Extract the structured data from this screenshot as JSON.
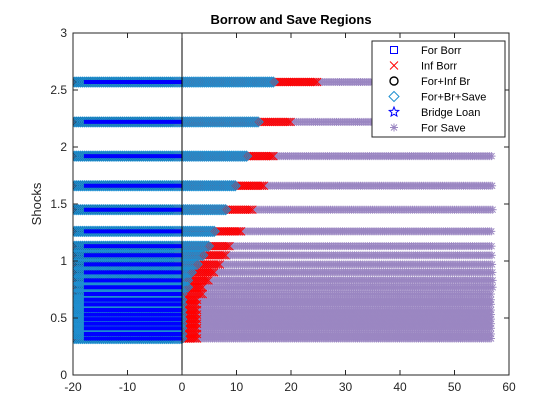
{
  "chart_data": {
    "type": "scatter",
    "title": "Borrow and Save Regions",
    "xlabel": "",
    "ylabel": "Shocks",
    "xlim": [
      -20,
      60
    ],
    "ylim": [
      0,
      3
    ],
    "xticks": [
      -20,
      -10,
      0,
      10,
      20,
      30,
      40,
      50,
      60
    ],
    "yticks": [
      0,
      0.5,
      1,
      1.5,
      2,
      2.5,
      3
    ],
    "xtick_labels": [
      "-20",
      "-10",
      "0",
      "10",
      "20",
      "30",
      "40",
      "50",
      "60"
    ],
    "ytick_labels": [
      "0",
      "0.5",
      "1",
      "1.5",
      "2",
      "2.5",
      "3"
    ],
    "vertical_line_x": 0,
    "grid": false,
    "legend_position": "top-right",
    "shock_levels": [
      0.32,
      0.36,
      0.41,
      0.45,
      0.49,
      0.53,
      0.57,
      0.62,
      0.66,
      0.71,
      0.77,
      0.83,
      0.9,
      0.97,
      1.05,
      1.13,
      1.26,
      1.45,
      1.66,
      1.92,
      2.22,
      2.57
    ],
    "series": [
      {
        "name": "For Borr",
        "marker": "square",
        "color": "#0000ff",
        "points": []
      },
      {
        "name": "Inf Borr",
        "marker": "x",
        "color": "#ff0000",
        "ranges": [
          {
            "y": 2.57,
            "x0": -20,
            "x1": 25
          },
          {
            "y": 2.22,
            "x0": -20,
            "x1": 20
          },
          {
            "y": 1.92,
            "x0": -20,
            "x1": 17
          },
          {
            "y": 1.66,
            "x0": -20,
            "x1": 15
          },
          {
            "y": 1.45,
            "x0": -20,
            "x1": 13
          },
          {
            "y": 1.26,
            "x0": -20,
            "x1": 11
          },
          {
            "y": 1.13,
            "x0": -20,
            "x1": 9
          },
          {
            "y": 1.05,
            "x0": -20,
            "x1": 8
          },
          {
            "y": 0.97,
            "x0": -20,
            "x1": 7
          },
          {
            "y": 0.9,
            "x0": -20,
            "x1": 6
          },
          {
            "y": 0.83,
            "x0": -20,
            "x1": 5
          },
          {
            "y": 0.77,
            "x0": -20,
            "x1": 4
          },
          {
            "y": 0.71,
            "x0": -20,
            "x1": 4
          },
          {
            "y": 0.66,
            "x0": -20,
            "x1": 3
          },
          {
            "y": 0.62,
            "x0": -20,
            "x1": 3
          },
          {
            "y": 0.57,
            "x0": -20,
            "x1": 3
          },
          {
            "y": 0.53,
            "x0": -20,
            "x1": 3
          },
          {
            "y": 0.49,
            "x0": -20,
            "x1": 3
          },
          {
            "y": 0.45,
            "x0": -20,
            "x1": 3
          },
          {
            "y": 0.41,
            "x0": -20,
            "x1": 3
          },
          {
            "y": 0.36,
            "x0": -20,
            "x1": 3
          },
          {
            "y": 0.32,
            "x0": -20,
            "x1": 3
          }
        ]
      },
      {
        "name": "For+Inf Br",
        "marker": "circle",
        "color": "#000000",
        "ranges": [
          {
            "y": 2.57,
            "x0": -20,
            "x1": -2
          },
          {
            "y": 2.22,
            "x0": -20,
            "x1": -2
          },
          {
            "y": 1.92,
            "x0": -20,
            "x1": -2
          },
          {
            "y": 1.66,
            "x0": -20,
            "x1": -2
          },
          {
            "y": 1.45,
            "x0": -20,
            "x1": -2
          },
          {
            "y": 1.26,
            "x0": -20,
            "x1": -2
          },
          {
            "y": 1.13,
            "x0": -20,
            "x1": -2
          },
          {
            "y": 1.05,
            "x0": -20,
            "x1": -2
          },
          {
            "y": 0.97,
            "x0": -20,
            "x1": -2
          },
          {
            "y": 0.9,
            "x0": -20,
            "x1": -2
          },
          {
            "y": 0.83,
            "x0": -20,
            "x1": -2
          },
          {
            "y": 0.77,
            "x0": -20,
            "x1": -2
          },
          {
            "y": 0.71,
            "x0": -20,
            "x1": -2
          },
          {
            "y": 0.66,
            "x0": -20,
            "x1": -2
          },
          {
            "y": 0.62,
            "x0": -20,
            "x1": -2
          },
          {
            "y": 0.57,
            "x0": -20,
            "x1": -2
          },
          {
            "y": 0.53,
            "x0": -20,
            "x1": -2
          },
          {
            "y": 0.49,
            "x0": -20,
            "x1": -2
          },
          {
            "y": 0.45,
            "x0": -20,
            "x1": -2
          },
          {
            "y": 0.41,
            "x0": -20,
            "x1": -2
          },
          {
            "y": 0.36,
            "x0": -20,
            "x1": -2
          },
          {
            "y": 0.32,
            "x0": -20,
            "x1": -2
          }
        ]
      },
      {
        "name": "For+Br+Save",
        "marker": "diamond",
        "color": "#1f8fd0",
        "ranges": [
          {
            "y": 2.57,
            "x0": -20,
            "x1": 17
          },
          {
            "y": 2.22,
            "x0": -20,
            "x1": 14
          },
          {
            "y": 1.92,
            "x0": -20,
            "x1": 12
          },
          {
            "y": 1.66,
            "x0": -20,
            "x1": 10
          },
          {
            "y": 1.45,
            "x0": -20,
            "x1": 8
          },
          {
            "y": 1.26,
            "x0": -20,
            "x1": 6
          },
          {
            "y": 1.13,
            "x0": -20,
            "x1": 5
          },
          {
            "y": 1.05,
            "x0": -20,
            "x1": 4
          },
          {
            "y": 0.97,
            "x0": -20,
            "x1": 3
          },
          {
            "y": 0.9,
            "x0": -20,
            "x1": 2
          },
          {
            "y": 0.83,
            "x0": -20,
            "x1": 1
          },
          {
            "y": 0.77,
            "x0": -20,
            "x1": 1
          },
          {
            "y": 0.71,
            "x0": -20,
            "x1": 0
          },
          {
            "y": 0.66,
            "x0": -20,
            "x1": 0
          },
          {
            "y": 0.62,
            "x0": -20,
            "x1": 0
          },
          {
            "y": 0.57,
            "x0": -20,
            "x1": 0
          },
          {
            "y": 0.53,
            "x0": -20,
            "x1": 0
          },
          {
            "y": 0.49,
            "x0": -20,
            "x1": 0
          },
          {
            "y": 0.45,
            "x0": -20,
            "x1": 0
          },
          {
            "y": 0.41,
            "x0": -20,
            "x1": 0
          },
          {
            "y": 0.36,
            "x0": -20,
            "x1": 0
          },
          {
            "y": 0.32,
            "x0": -20,
            "x1": 0
          }
        ]
      },
      {
        "name": "Bridge Loan",
        "marker": "star",
        "color": "#0000ff",
        "ranges": [
          {
            "y": 2.57,
            "x0": -18,
            "x1": 0
          },
          {
            "y": 2.22,
            "x0": -18,
            "x1": 0
          },
          {
            "y": 1.92,
            "x0": -18,
            "x1": 0
          },
          {
            "y": 1.66,
            "x0": -18,
            "x1": 0
          },
          {
            "y": 1.45,
            "x0": -18,
            "x1": 0
          },
          {
            "y": 1.26,
            "x0": -18,
            "x1": 0
          },
          {
            "y": 1.13,
            "x0": -18,
            "x1": 0
          },
          {
            "y": 1.05,
            "x0": -18,
            "x1": 0
          },
          {
            "y": 0.97,
            "x0": -18,
            "x1": 0
          },
          {
            "y": 0.9,
            "x0": -18,
            "x1": 0
          },
          {
            "y": 0.83,
            "x0": -18,
            "x1": 0
          },
          {
            "y": 0.77,
            "x0": -18,
            "x1": 0
          },
          {
            "y": 0.71,
            "x0": -18,
            "x1": 0
          },
          {
            "y": 0.66,
            "x0": -18,
            "x1": 0
          },
          {
            "y": 0.62,
            "x0": -18,
            "x1": 0
          },
          {
            "y": 0.57,
            "x0": -18,
            "x1": 0
          },
          {
            "y": 0.53,
            "x0": -18,
            "x1": 0
          },
          {
            "y": 0.49,
            "x0": -18,
            "x1": 0
          },
          {
            "y": 0.45,
            "x0": -18,
            "x1": 0
          },
          {
            "y": 0.41,
            "x0": -18,
            "x1": 0
          },
          {
            "y": 0.36,
            "x0": -18,
            "x1": 0
          },
          {
            "y": 0.32,
            "x0": -18,
            "x1": 0
          }
        ]
      },
      {
        "name": "For Save",
        "marker": "asterisk",
        "color": "#9b87c2",
        "ranges": [
          {
            "y": 2.57,
            "x0": 17,
            "x1": 57
          },
          {
            "y": 2.22,
            "x0": 14,
            "x1": 57
          },
          {
            "y": 1.92,
            "x0": 12,
            "x1": 57
          },
          {
            "y": 1.66,
            "x0": 10,
            "x1": 57
          },
          {
            "y": 1.45,
            "x0": 8,
            "x1": 57
          },
          {
            "y": 1.26,
            "x0": 6,
            "x1": 57
          },
          {
            "y": 1.13,
            "x0": 5,
            "x1": 57
          },
          {
            "y": 1.05,
            "x0": 4,
            "x1": 57
          },
          {
            "y": 0.97,
            "x0": 3,
            "x1": 57
          },
          {
            "y": 0.9,
            "x0": 2,
            "x1": 57
          },
          {
            "y": 0.83,
            "x0": 1,
            "x1": 57
          },
          {
            "y": 0.77,
            "x0": 1,
            "x1": 57
          },
          {
            "y": 0.71,
            "x0": 0,
            "x1": 57
          },
          {
            "y": 0.66,
            "x0": 0,
            "x1": 57
          },
          {
            "y": 0.62,
            "x0": 0,
            "x1": 57
          },
          {
            "y": 0.57,
            "x0": 0,
            "x1": 57
          },
          {
            "y": 0.53,
            "x0": 0,
            "x1": 57
          },
          {
            "y": 0.49,
            "x0": 0,
            "x1": 57
          },
          {
            "y": 0.45,
            "x0": 0,
            "x1": 57
          },
          {
            "y": 0.41,
            "x0": 0,
            "x1": 57
          },
          {
            "y": 0.36,
            "x0": 0,
            "x1": 57
          },
          {
            "y": 0.32,
            "x0": 0,
            "x1": 57
          }
        ]
      }
    ],
    "legend": [
      "For Borr",
      "Inf Borr",
      "For+Inf Br",
      "For+Br+Save",
      "Bridge Loan",
      "For Save"
    ]
  }
}
